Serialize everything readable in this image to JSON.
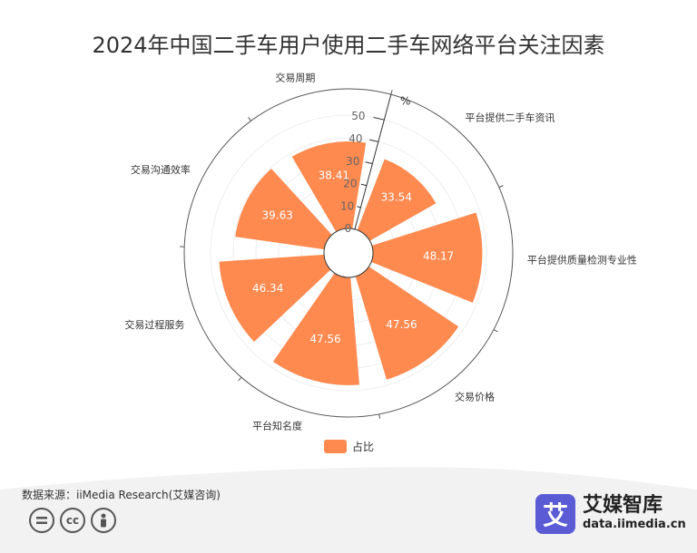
{
  "title": "2024年中国二手车用户使用二手车网络平台关注因素",
  "chart_data": {
    "type": "polar-bar",
    "title": "2024年中国二手车用户使用二手车网络平台关注因素",
    "categories": [
      "平台提供二手车资讯",
      "平台提供质量检测专业性",
      "交易价格",
      "平台知名度",
      "交易过程服务",
      "交易沟通效率",
      "交易周期"
    ],
    "values": [
      33.54,
      48.17,
      47.56,
      47.56,
      46.34,
      39.63,
      38.41
    ],
    "series": [
      {
        "name": "占比",
        "values": [
          33.54,
          48.17,
          47.56,
          47.56,
          46.34,
          39.63,
          38.41
        ]
      }
    ],
    "radial_axis": {
      "min": 0,
      "max": 50,
      "ticks": [
        0,
        10,
        20,
        30,
        40,
        50
      ],
      "unit": "%"
    },
    "legend_position": "bottom",
    "color": "#FF8A50"
  },
  "legend": {
    "label": "占比"
  },
  "footer": {
    "source": "数据来源：iiMedia Research(艾媒咨询)",
    "brand_logo": "艾",
    "brand_name": "艾媒智库",
    "brand_url": "data.iimedia.cn",
    "icons": [
      "equal-icon",
      "cc-icon",
      "person-icon"
    ],
    "cc_text": "cc"
  }
}
